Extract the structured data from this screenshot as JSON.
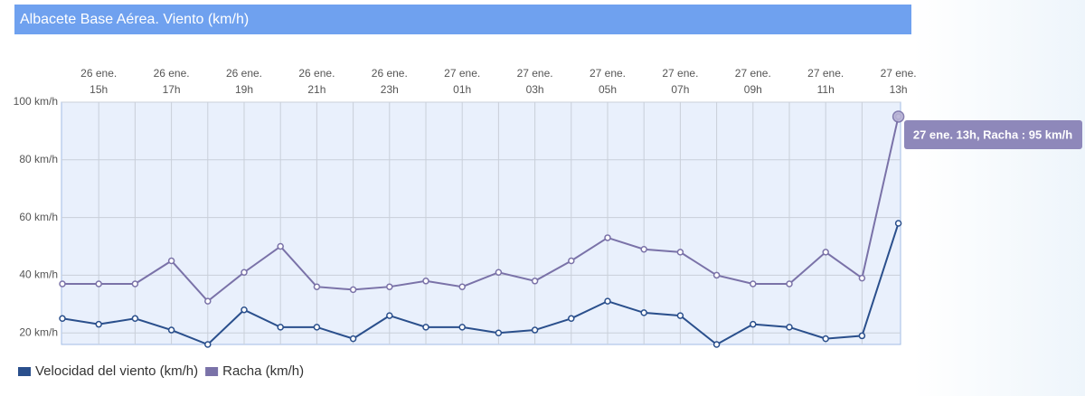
{
  "chart_data": {
    "type": "line",
    "title": "Albacete Base Aérea. Viento (km/h)",
    "categories": [
      null,
      [
        "26 ene.",
        "15h"
      ],
      null,
      [
        "26 ene.",
        "17h"
      ],
      null,
      [
        "26 ene.",
        "19h"
      ],
      null,
      [
        "26 ene.",
        "21h"
      ],
      null,
      [
        "26 ene.",
        "23h"
      ],
      null,
      [
        "27 ene.",
        "01h"
      ],
      null,
      [
        "27 ene.",
        "03h"
      ],
      null,
      [
        "27 ene.",
        "05h"
      ],
      null,
      [
        "27 ene.",
        "07h"
      ],
      null,
      [
        "27 ene.",
        "09h"
      ],
      null,
      [
        "27 ene.",
        "11h"
      ],
      null,
      [
        "27 ene.",
        "13h"
      ]
    ],
    "series": [
      {
        "name": "Velocidad del viento (km/h)",
        "color": "#2a4f8c",
        "values": [
          25,
          23,
          25,
          21,
          16,
          28,
          22,
          22,
          18,
          26,
          22,
          22,
          20,
          21,
          25,
          31,
          27,
          26,
          16,
          23,
          22,
          18,
          19,
          58
        ]
      },
      {
        "name": "Racha (km/h)",
        "color": "#7a72a8",
        "values": [
          37,
          37,
          37,
          45,
          31,
          41,
          50,
          36,
          35,
          36,
          38,
          36,
          41,
          38,
          45,
          53,
          49,
          48,
          40,
          37,
          37,
          48,
          39,
          95
        ]
      }
    ],
    "ylim": [
      16,
      100
    ],
    "yticks": [
      {
        "value": 20,
        "label": "20 km/h"
      },
      {
        "value": 40,
        "label": "40 km/h"
      },
      {
        "value": 60,
        "label": "60 km/h"
      },
      {
        "value": 80,
        "label": "80 km/h"
      },
      {
        "value": 100,
        "label": "100 km/h"
      }
    ],
    "grid": true,
    "legend": "bottom-left",
    "annotation": "27 ene. 13h, Racha : 95 km/h"
  }
}
